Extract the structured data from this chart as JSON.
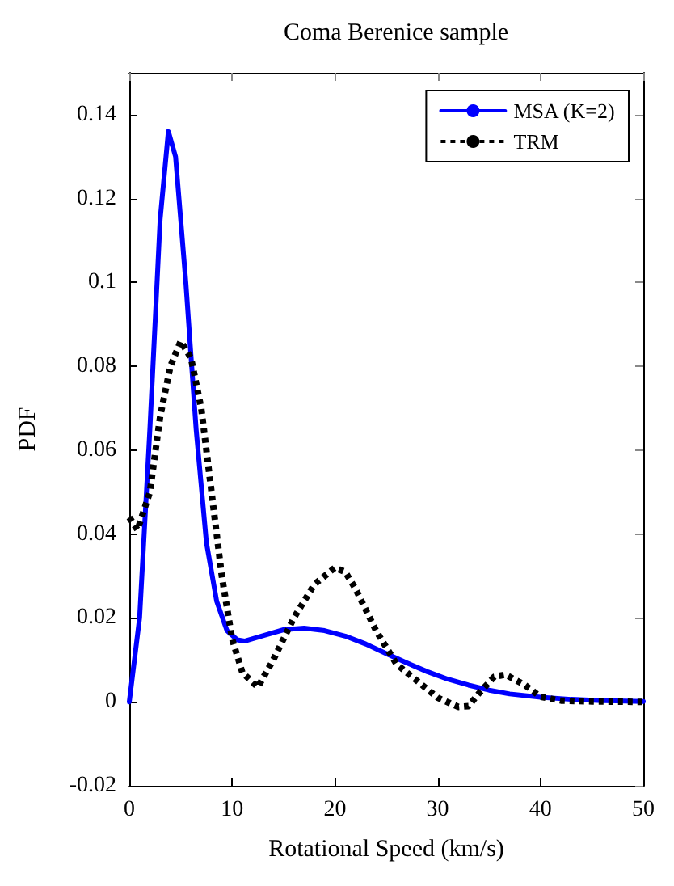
{
  "chart_data": {
    "type": "line",
    "title": "Coma Berenice sample",
    "xlabel": "Rotational Speed (km/s)",
    "ylabel": "PDF",
    "xlim": [
      0,
      50
    ],
    "xticks": [
      0,
      10,
      20,
      30,
      40,
      50
    ],
    "ylim": [
      -0.02,
      0.15
    ],
    "yticks": [
      -0.02,
      0,
      0.02,
      0.04,
      0.06,
      0.08,
      0.1,
      0.12,
      0.14
    ],
    "grid": false,
    "legend": "top right",
    "marker": "none",
    "series": [
      {
        "name": "MSA (K=2)",
        "color": "#0000ff",
        "line_style": "solid",
        "x": [
          0,
          1,
          2,
          3,
          3.8,
          4.5,
          5.5,
          6.5,
          7.5,
          8.5,
          9.5,
          10.5,
          11.2,
          13,
          15,
          17,
          19,
          21,
          23,
          25,
          27,
          29,
          31,
          33,
          35,
          37,
          40,
          43,
          46,
          50
        ],
        "values": [
          0,
          0.02,
          0.065,
          0.115,
          0.136,
          0.13,
          0.1,
          0.065,
          0.038,
          0.024,
          0.017,
          0.0148,
          0.0145,
          0.0158,
          0.0172,
          0.0176,
          0.017,
          0.0157,
          0.0138,
          0.0115,
          0.0093,
          0.0072,
          0.0054,
          0.004,
          0.0028,
          0.0019,
          0.0011,
          0.0006,
          0.0003,
          0.0001
        ]
      },
      {
        "name": "TRM",
        "color": "#000000",
        "line_style": "dotted",
        "x": [
          0,
          0.8,
          2,
          3,
          4,
          5,
          6,
          7,
          8,
          9,
          10,
          11,
          12.5,
          14,
          16,
          18,
          20,
          21,
          22,
          24,
          26,
          28,
          30,
          32,
          33,
          34,
          35.5,
          36.6,
          38.5,
          40,
          42,
          45,
          50
        ],
        "values": [
          0.044,
          0.041,
          0.05,
          0.068,
          0.08,
          0.086,
          0.082,
          0.07,
          0.05,
          0.03,
          0.015,
          0.007,
          0.0035,
          0.01,
          0.02,
          0.028,
          0.032,
          0.031,
          0.027,
          0.017,
          0.009,
          0.005,
          0.001,
          -0.0012,
          -0.001,
          0.002,
          0.006,
          0.0065,
          0.004,
          0.0012,
          0.0003,
          0.0001,
          0
        ]
      }
    ]
  }
}
